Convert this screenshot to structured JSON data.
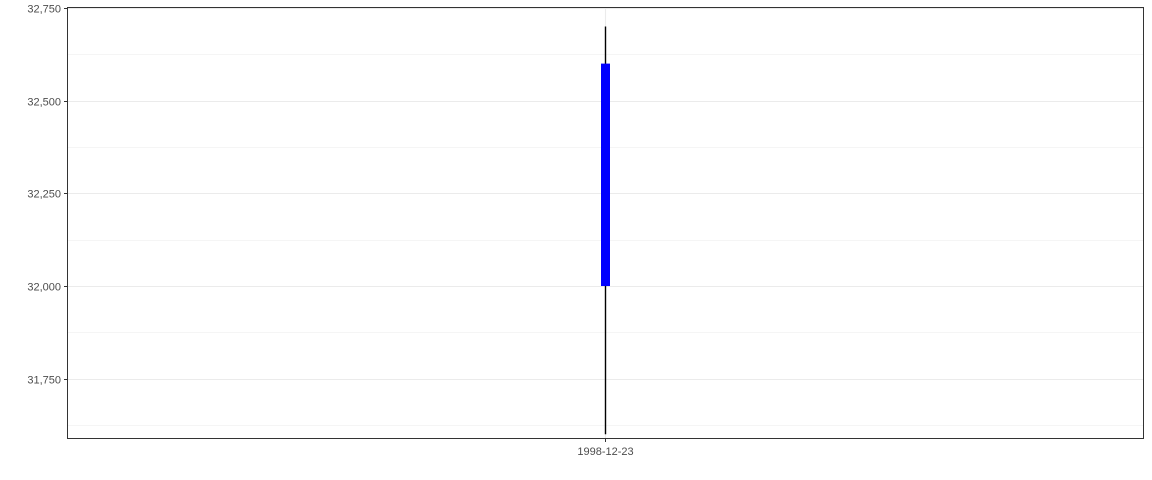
{
  "chart_data": {
    "type": "candlestick",
    "title": "",
    "xlabel": "",
    "ylabel": "",
    "x": [
      "1998-12-23"
    ],
    "candles": [
      {
        "date": "1998-12-23",
        "open": 32000,
        "high": 32700,
        "low": 31600,
        "close": 32600
      }
    ],
    "ylim": [
      31590,
      32750
    ],
    "y_ticks": [
      31750,
      32000,
      32250,
      32500,
      32750
    ],
    "y_tick_labels": [
      "31,750",
      "32,000",
      "32,250",
      "32,500",
      "32,750"
    ],
    "y_minor_ticks": [
      31625,
      31875,
      32125,
      32375,
      32625
    ],
    "x_tick_labels": [
      "1998-12-23"
    ],
    "grid": true,
    "colors": {
      "body": "#0000ff",
      "wick": "#000000",
      "grid": "#ebebeb",
      "panel_border": "#333333",
      "tick_text": "#4d4d4d"
    }
  }
}
